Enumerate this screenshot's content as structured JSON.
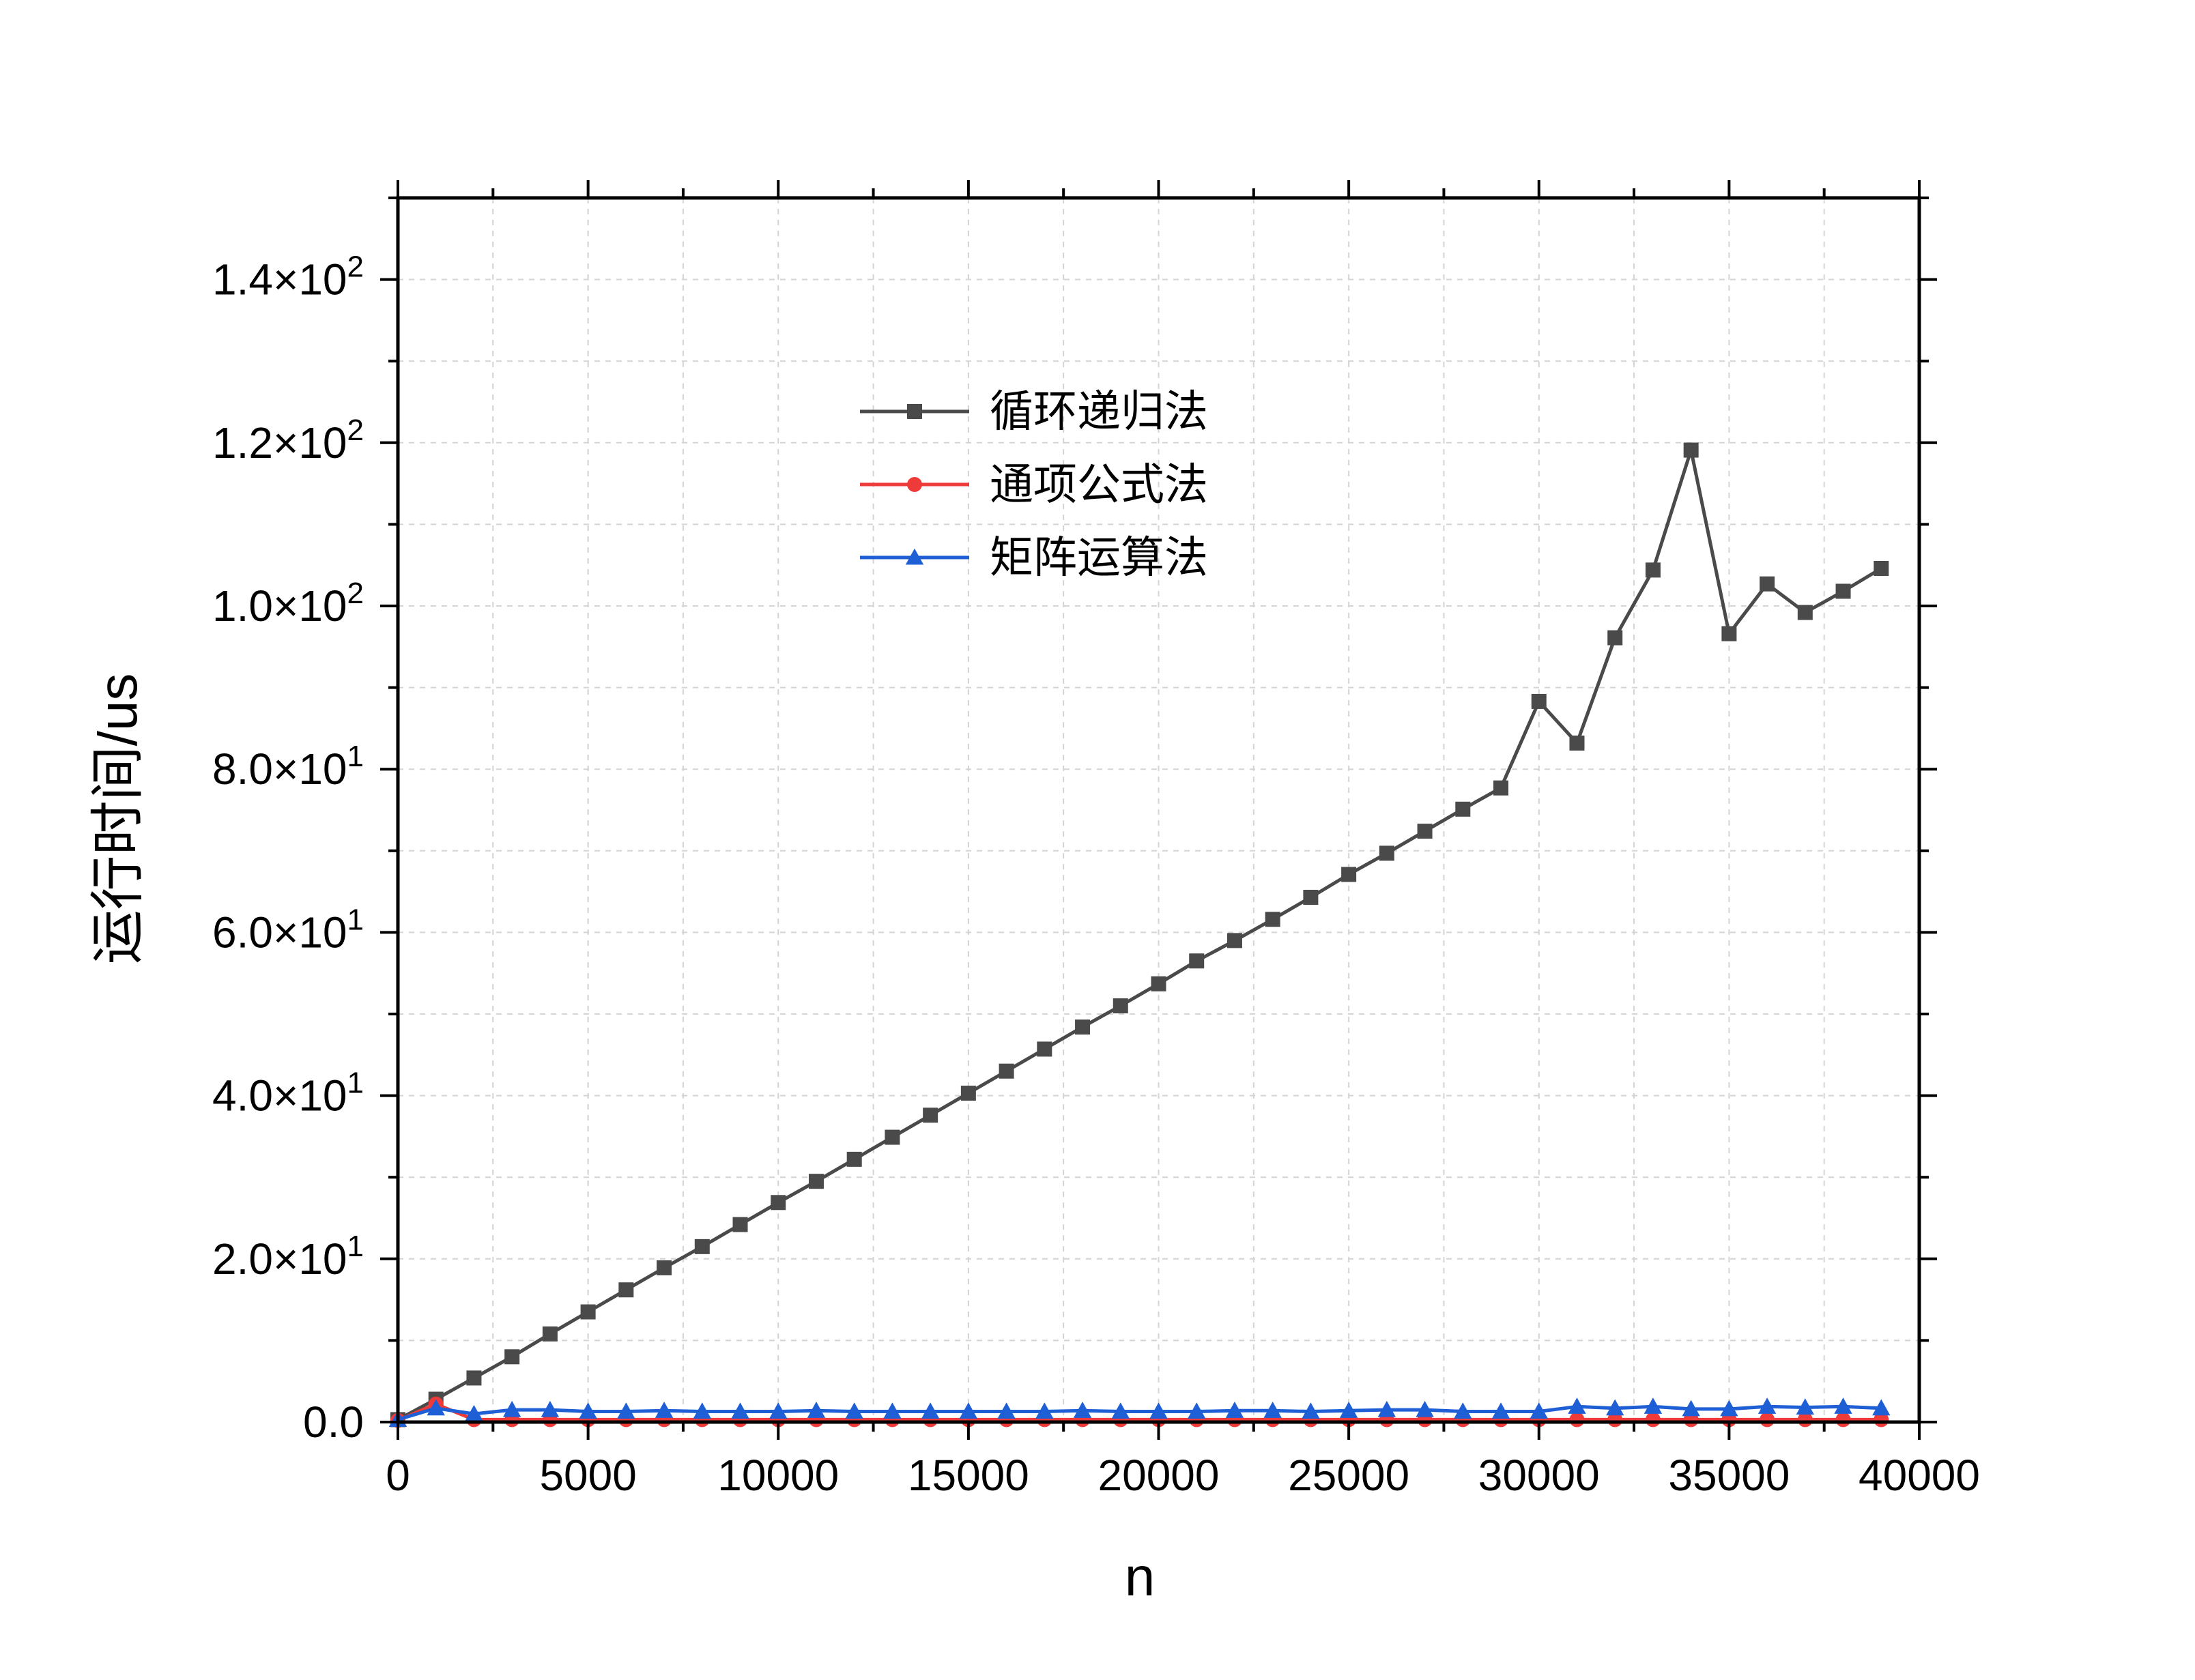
{
  "chart_data": {
    "type": "line",
    "xlabel": "n",
    "ylabel": "运行时间/us",
    "xlim": [
      0,
      40000
    ],
    "ylim": [
      0,
      150
    ],
    "x_ticks": [
      0,
      5000,
      10000,
      15000,
      20000,
      25000,
      30000,
      35000,
      40000
    ],
    "x_tick_labels": [
      "0",
      "5000",
      "10000",
      "15000",
      "20000",
      "25000",
      "30000",
      "35000",
      "40000"
    ],
    "y_ticks": [
      0,
      20,
      40,
      60,
      80,
      100,
      120,
      140
    ],
    "y_tick_labels": [
      {
        "mantissa": "0.0",
        "exponent": ""
      },
      {
        "mantissa": "2.0×10",
        "exponent": "1"
      },
      {
        "mantissa": "4.0×10",
        "exponent": "1"
      },
      {
        "mantissa": "6.0×10",
        "exponent": "1"
      },
      {
        "mantissa": "8.0×10",
        "exponent": "1"
      },
      {
        "mantissa": "1.0×10",
        "exponent": "2"
      },
      {
        "mantissa": "1.2×10",
        "exponent": "2"
      },
      {
        "mantissa": "1.4×10",
        "exponent": "2"
      }
    ],
    "grid": true,
    "legend_position": "upper-center",
    "x": [
      0,
      1000,
      2000,
      3000,
      4000,
      5000,
      6000,
      7000,
      8000,
      9000,
      10000,
      11000,
      12000,
      13000,
      14000,
      15000,
      16000,
      17000,
      18000,
      19000,
      20000,
      21000,
      22000,
      23000,
      24000,
      25000,
      26000,
      27000,
      28000,
      29000,
      30000,
      31000,
      32000,
      33000,
      34000,
      35000,
      36000,
      37000,
      38000,
      39000
    ],
    "series": [
      {
        "name": "循环递归法",
        "color": "#4a4a4a",
        "marker": "square",
        "values": [
          0.3,
          2.8,
          5.4,
          8.0,
          10.8,
          13.5,
          16.2,
          18.9,
          21.5,
          24.2,
          26.9,
          29.5,
          32.2,
          34.9,
          37.6,
          40.3,
          43.0,
          45.7,
          48.4,
          51.0,
          53.7,
          56.5,
          59.0,
          61.6,
          64.3,
          67.1,
          69.7,
          72.4,
          75.1,
          77.7,
          88.3,
          83.2,
          96.1,
          104.4,
          119.1,
          96.6,
          102.7,
          99.2,
          101.8,
          104.6
        ]
      },
      {
        "name": "通项公式法",
        "color": "#ef3a3a",
        "marker": "circle",
        "values": [
          0.2,
          2.2,
          0.3,
          0.3,
          0.3,
          0.3,
          0.3,
          0.3,
          0.3,
          0.3,
          0.3,
          0.3,
          0.3,
          0.3,
          0.3,
          0.3,
          0.3,
          0.3,
          0.3,
          0.3,
          0.3,
          0.3,
          0.3,
          0.3,
          0.3,
          0.3,
          0.3,
          0.3,
          0.3,
          0.3,
          0.3,
          0.3,
          0.3,
          0.3,
          0.3,
          0.3,
          0.3,
          0.3,
          0.3,
          0.3
        ]
      },
      {
        "name": "矩阵运算法",
        "color": "#1f5fd6",
        "marker": "triangle",
        "values": [
          0.3,
          1.7,
          1.0,
          1.5,
          1.5,
          1.3,
          1.3,
          1.4,
          1.3,
          1.3,
          1.3,
          1.4,
          1.3,
          1.3,
          1.3,
          1.3,
          1.3,
          1.3,
          1.4,
          1.3,
          1.3,
          1.3,
          1.4,
          1.4,
          1.3,
          1.4,
          1.5,
          1.5,
          1.3,
          1.3,
          1.3,
          1.9,
          1.7,
          1.9,
          1.6,
          1.6,
          1.9,
          1.8,
          1.9,
          1.7
        ]
      }
    ]
  }
}
